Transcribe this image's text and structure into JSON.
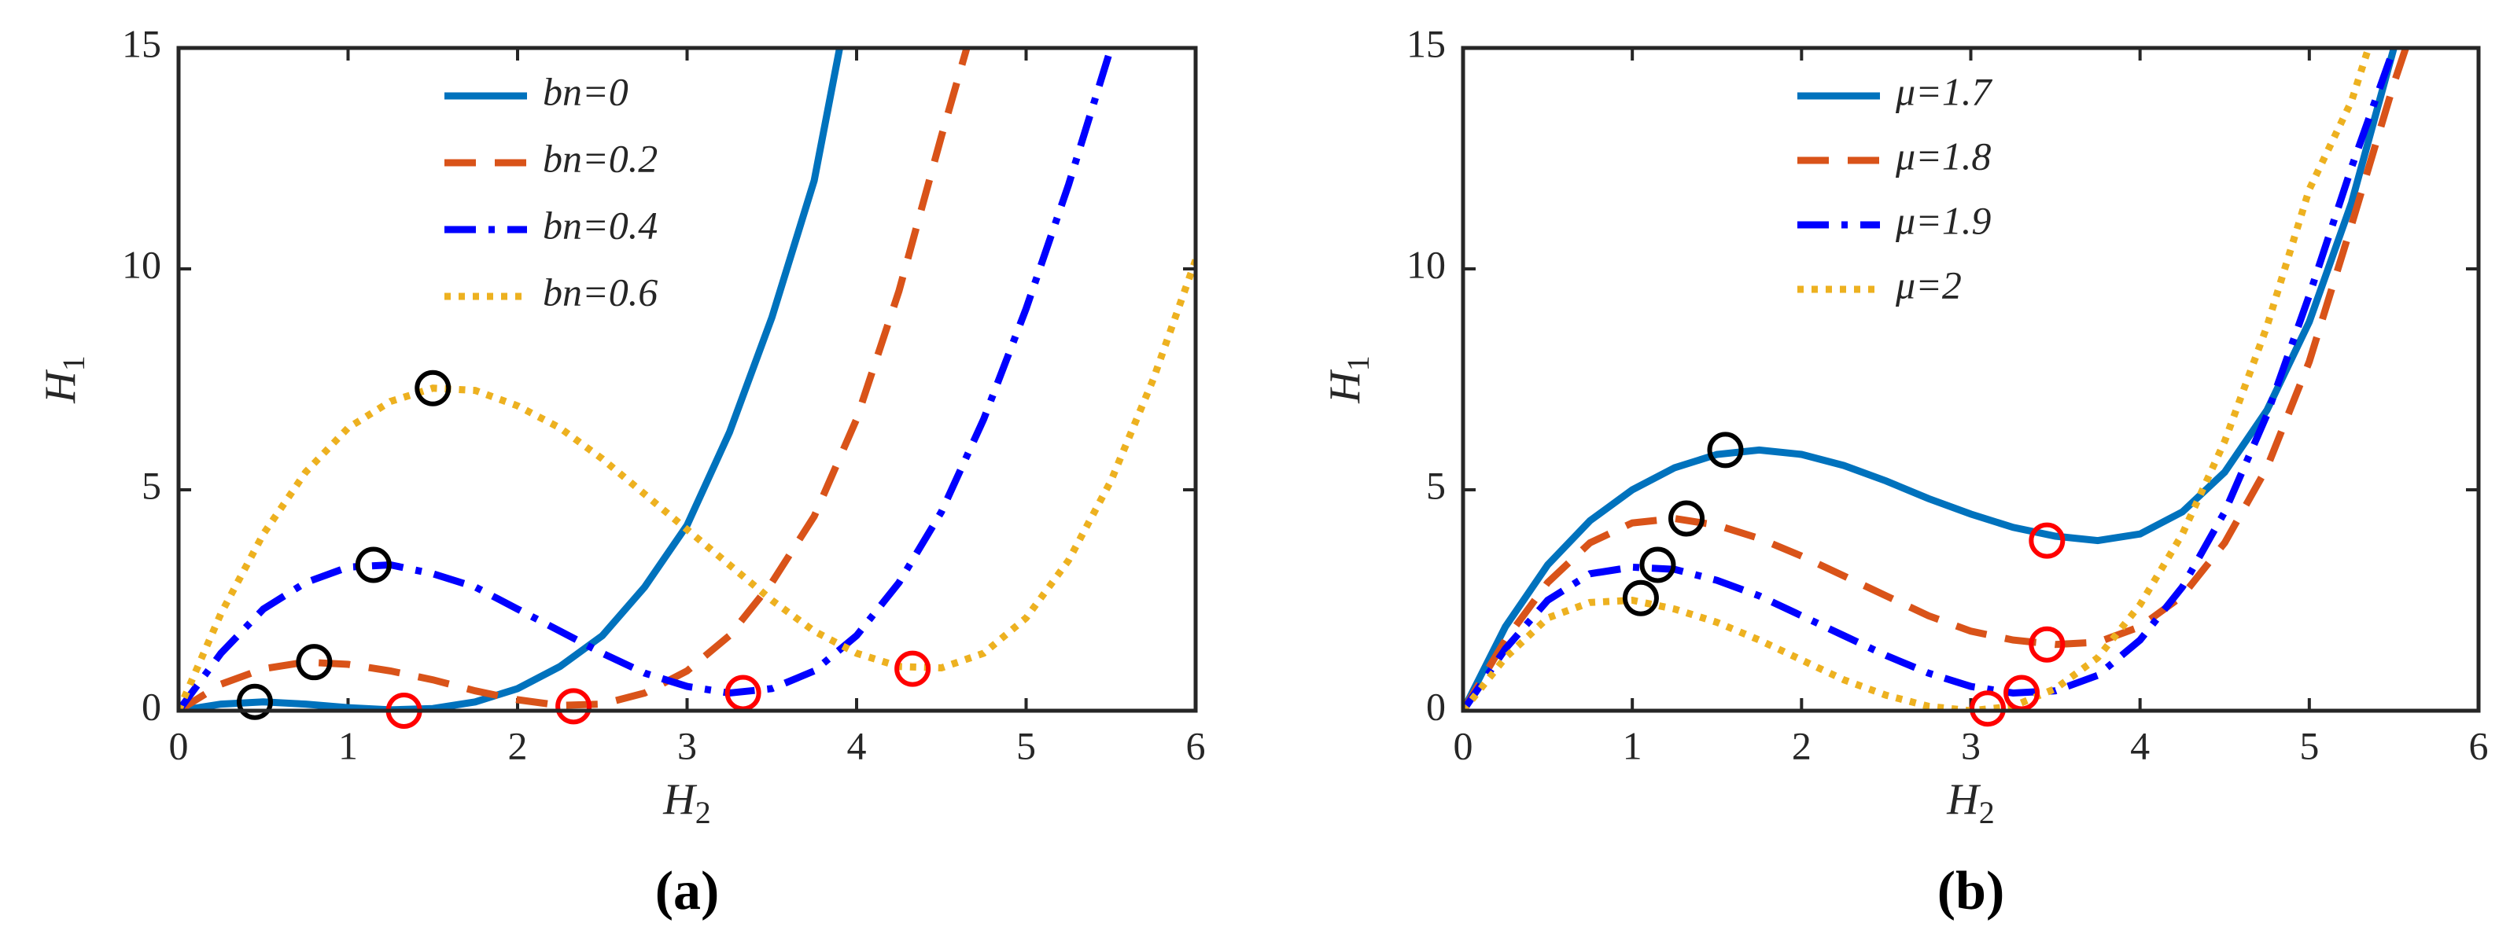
{
  "chart_data": [
    {
      "type": "line",
      "panel_label": "(a)",
      "xlabel": {
        "text": "H",
        "sub": "2"
      },
      "ylabel": {
        "text": "H",
        "sub": "1"
      },
      "xlim": [
        0,
        6
      ],
      "ylim": [
        0,
        15
      ],
      "xticks": [
        0,
        1,
        2,
        3,
        4,
        5,
        6
      ],
      "yticks": [
        0,
        5,
        10,
        15
      ],
      "series": [
        {
          "name": "bn=0",
          "color": "#0072BD",
          "style": "solid",
          "x": [
            0,
            0.25,
            0.5,
            0.75,
            1,
            1.25,
            1.5,
            1.75,
            2,
            2.25,
            2.5,
            2.75,
            3,
            3.25,
            3.5,
            3.75,
            3.9
          ],
          "values": [
            0,
            0.15,
            0.2,
            0.15,
            0.07,
            0.02,
            0.05,
            0.2,
            0.5,
            1.0,
            1.7,
            2.8,
            4.2,
            6.3,
            8.9,
            12.0,
            15
          ]
        },
        {
          "name": "bn=0.2",
          "color": "#D95319",
          "style": "dashed",
          "x": [
            0,
            0.25,
            0.5,
            0.75,
            1,
            1.25,
            1.5,
            1.75,
            2,
            2.25,
            2.5,
            2.75,
            3,
            3.25,
            3.5,
            3.75,
            4,
            4.25,
            4.5,
            4.65
          ],
          "values": [
            0,
            0.6,
            0.95,
            1.1,
            1.05,
            0.9,
            0.7,
            0.45,
            0.25,
            0.12,
            0.15,
            0.4,
            0.9,
            1.7,
            2.9,
            4.4,
            6.6,
            9.5,
            13,
            15
          ]
        },
        {
          "name": "bn=0.4",
          "color": "#0000FF",
          "style": "dashdot",
          "x": [
            0,
            0.25,
            0.5,
            0.75,
            1,
            1.25,
            1.5,
            1.75,
            2,
            2.25,
            2.5,
            2.75,
            3,
            3.25,
            3.5,
            3.75,
            4,
            4.25,
            4.5,
            4.75,
            5,
            5.25,
            5.5
          ],
          "values": [
            0,
            1.3,
            2.3,
            2.9,
            3.25,
            3.3,
            3.1,
            2.8,
            2.3,
            1.8,
            1.3,
            0.85,
            0.55,
            0.4,
            0.5,
            0.9,
            1.7,
            2.9,
            4.5,
            6.6,
            9.1,
            11.9,
            15
          ]
        },
        {
          "name": "bn=0.6",
          "color": "#EDB120",
          "style": "dotted",
          "x": [
            0,
            0.25,
            0.5,
            0.75,
            1,
            1.25,
            1.5,
            1.75,
            2,
            2.25,
            2.5,
            2.75,
            3,
            3.25,
            3.5,
            3.75,
            4,
            4.25,
            4.5,
            4.75,
            5,
            5.25,
            5.5,
            5.75,
            6
          ],
          "values": [
            0,
            2.2,
            4.0,
            5.4,
            6.4,
            7.0,
            7.3,
            7.25,
            6.9,
            6.4,
            5.7,
            4.9,
            4.1,
            3.3,
            2.5,
            1.8,
            1.3,
            1.0,
            0.97,
            1.3,
            2.1,
            3.4,
            5.2,
            7.5,
            10.2
          ]
        }
      ],
      "markers": [
        {
          "x": 0.45,
          "y": 0.2,
          "color": "#000000"
        },
        {
          "x": 0.8,
          "y": 1.1,
          "color": "#000000"
        },
        {
          "x": 1.15,
          "y": 3.3,
          "color": "#000000"
        },
        {
          "x": 1.5,
          "y": 7.3,
          "color": "#000000"
        },
        {
          "x": 1.33,
          "y": 0,
          "color": "#FF0000"
        },
        {
          "x": 2.33,
          "y": 0.1,
          "color": "#FF0000"
        },
        {
          "x": 3.33,
          "y": 0.4,
          "color": "#FF0000"
        },
        {
          "x": 4.33,
          "y": 0.95,
          "color": "#FF0000"
        }
      ]
    },
    {
      "type": "line",
      "panel_label": "(b)",
      "xlabel": {
        "text": "H",
        "sub": "2"
      },
      "ylabel": {
        "text": "H",
        "sub": "1"
      },
      "xlim": [
        0,
        6
      ],
      "ylim": [
        0,
        15
      ],
      "xticks": [
        0,
        1,
        2,
        3,
        4,
        5,
        6
      ],
      "yticks": [
        0,
        5,
        10,
        15
      ],
      "series": [
        {
          "name": "μ=1.7",
          "color": "#0072BD",
          "style": "solid",
          "x": [
            0,
            0.25,
            0.5,
            0.75,
            1,
            1.25,
            1.5,
            1.75,
            2,
            2.25,
            2.5,
            2.75,
            3,
            3.25,
            3.5,
            3.75,
            4,
            4.25,
            4.5,
            4.75,
            5,
            5.25,
            5.5
          ],
          "values": [
            0,
            1.9,
            3.3,
            4.3,
            5.0,
            5.5,
            5.8,
            5.9,
            5.8,
            5.55,
            5.2,
            4.8,
            4.45,
            4.15,
            3.95,
            3.85,
            4.0,
            4.5,
            5.4,
            6.8,
            8.8,
            11.5,
            15
          ]
        },
        {
          "name": "μ=1.8",
          "color": "#D95319",
          "style": "dashed",
          "x": [
            0,
            0.25,
            0.5,
            0.75,
            1,
            1.25,
            1.5,
            1.75,
            2,
            2.25,
            2.5,
            2.75,
            3,
            3.25,
            3.5,
            3.75,
            4,
            4.25,
            4.5,
            4.75,
            5,
            5.25,
            5.5,
            5.57
          ],
          "values": [
            0,
            1.6,
            2.9,
            3.8,
            4.25,
            4.35,
            4.2,
            3.9,
            3.5,
            3.05,
            2.6,
            2.15,
            1.8,
            1.6,
            1.5,
            1.55,
            1.9,
            2.6,
            3.8,
            5.5,
            7.9,
            11.0,
            14.2,
            15
          ]
        },
        {
          "name": "μ=1.9",
          "color": "#0000FF",
          "style": "dashdot",
          "x": [
            0,
            0.25,
            0.5,
            0.75,
            1,
            1.25,
            1.5,
            1.75,
            2,
            2.25,
            2.5,
            2.75,
            3,
            3.25,
            3.5,
            3.75,
            4,
            4.25,
            4.5,
            4.75,
            5,
            5.25,
            5.5
          ],
          "values": [
            0,
            1.4,
            2.5,
            3.1,
            3.25,
            3.2,
            2.95,
            2.6,
            2.15,
            1.7,
            1.25,
            0.85,
            0.55,
            0.4,
            0.45,
            0.8,
            1.6,
            2.8,
            4.5,
            6.7,
            9.4,
            12.3,
            15
          ]
        },
        {
          "name": "μ=2",
          "color": "#EDB120",
          "style": "dotted",
          "x": [
            0,
            0.25,
            0.5,
            0.75,
            1,
            1.25,
            1.5,
            1.75,
            2,
            2.25,
            2.5,
            2.75,
            3,
            3.25,
            3.5,
            3.75,
            4,
            4.25,
            4.5,
            4.75,
            5,
            5.25,
            5.35
          ],
          "values": [
            0,
            1.2,
            2.1,
            2.45,
            2.5,
            2.3,
            2.0,
            1.6,
            1.15,
            0.7,
            0.35,
            0.1,
            0.0,
            0.1,
            0.5,
            1.2,
            2.4,
            4.0,
            6.1,
            8.7,
            11.8,
            13.8,
            15
          ]
        }
      ],
      "markers": [
        {
          "x": 1.55,
          "y": 5.9,
          "color": "#000000"
        },
        {
          "x": 1.32,
          "y": 4.35,
          "color": "#000000"
        },
        {
          "x": 1.15,
          "y": 3.3,
          "color": "#000000"
        },
        {
          "x": 1.05,
          "y": 2.55,
          "color": "#000000"
        },
        {
          "x": 3.45,
          "y": 3.85,
          "color": "#FF0000"
        },
        {
          "x": 3.45,
          "y": 1.5,
          "color": "#FF0000"
        },
        {
          "x": 3.3,
          "y": 0.4,
          "color": "#FF0000"
        },
        {
          "x": 3.1,
          "y": 0.05,
          "color": "#FF0000"
        }
      ]
    }
  ]
}
